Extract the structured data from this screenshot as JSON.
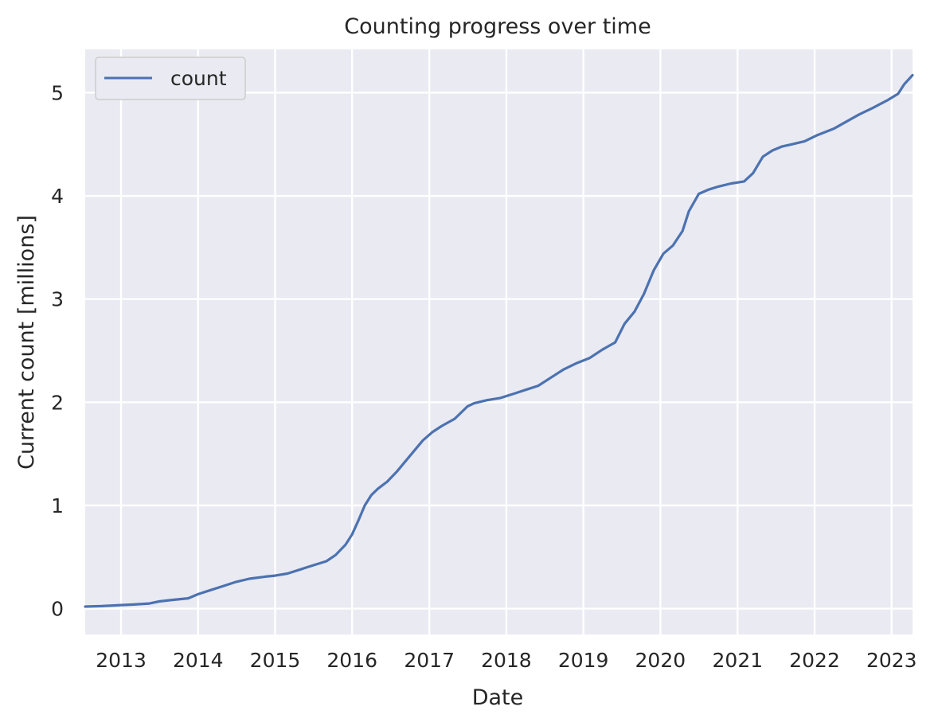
{
  "chart_data": {
    "type": "line",
    "title": "Counting progress over time",
    "xlabel": "Date",
    "ylabel": "Current count [millions]",
    "legend": {
      "placement": "top-left",
      "entries": [
        "count"
      ]
    },
    "grid": true,
    "xlim": [
      "2012-07-15",
      "2023-04-10"
    ],
    "ylim": [
      -0.25,
      5.42
    ],
    "x_ticks": [
      "2013",
      "2014",
      "2015",
      "2016",
      "2017",
      "2018",
      "2019",
      "2020",
      "2021",
      "2022",
      "2023"
    ],
    "y_ticks": [
      "0",
      "1",
      "2",
      "3",
      "4",
      "5"
    ],
    "colors": {
      "series": "#4c72b0",
      "plot_bg": "#eaeaf2",
      "grid": "#ffffff"
    },
    "series": [
      {
        "name": "count",
        "points": [
          [
            "2012-07-15",
            0.02
          ],
          [
            "2012-10-01",
            0.025
          ],
          [
            "2013-01-01",
            0.035
          ],
          [
            "2013-03-01",
            0.04
          ],
          [
            "2013-05-15",
            0.05
          ],
          [
            "2013-07-01",
            0.07
          ],
          [
            "2013-09-01",
            0.085
          ],
          [
            "2013-11-15",
            0.1
          ],
          [
            "2014-01-01",
            0.14
          ],
          [
            "2014-03-01",
            0.18
          ],
          [
            "2014-05-01",
            0.22
          ],
          [
            "2014-07-01",
            0.26
          ],
          [
            "2014-09-01",
            0.29
          ],
          [
            "2014-11-15",
            0.31
          ],
          [
            "2015-01-01",
            0.32
          ],
          [
            "2015-03-01",
            0.34
          ],
          [
            "2015-05-01",
            0.38
          ],
          [
            "2015-07-01",
            0.42
          ],
          [
            "2015-09-01",
            0.46
          ],
          [
            "2015-10-15",
            0.52
          ],
          [
            "2015-12-01",
            0.62
          ],
          [
            "2016-01-01",
            0.72
          ],
          [
            "2016-02-01",
            0.86
          ],
          [
            "2016-03-01",
            1.0
          ],
          [
            "2016-04-01",
            1.1
          ],
          [
            "2016-05-01",
            1.16
          ],
          [
            "2016-06-15",
            1.23
          ],
          [
            "2016-08-01",
            1.33
          ],
          [
            "2016-10-01",
            1.48
          ],
          [
            "2016-12-01",
            1.63
          ],
          [
            "2017-01-15",
            1.71
          ],
          [
            "2017-03-01",
            1.77
          ],
          [
            "2017-05-01",
            1.84
          ],
          [
            "2017-07-01",
            1.96
          ],
          [
            "2017-08-01",
            1.99
          ],
          [
            "2017-10-01",
            2.02
          ],
          [
            "2017-12-01",
            2.04
          ],
          [
            "2018-02-01",
            2.08
          ],
          [
            "2018-04-01",
            2.12
          ],
          [
            "2018-06-01",
            2.16
          ],
          [
            "2018-08-01",
            2.24
          ],
          [
            "2018-10-01",
            2.32
          ],
          [
            "2018-12-01",
            2.38
          ],
          [
            "2019-02-01",
            2.43
          ],
          [
            "2019-04-01",
            2.51
          ],
          [
            "2019-06-01",
            2.58
          ],
          [
            "2019-07-15",
            2.76
          ],
          [
            "2019-09-01",
            2.88
          ],
          [
            "2019-10-15",
            3.05
          ],
          [
            "2019-12-01",
            3.28
          ],
          [
            "2020-01-15",
            3.44
          ],
          [
            "2020-03-01",
            3.52
          ],
          [
            "2020-04-15",
            3.66
          ],
          [
            "2020-05-15",
            3.85
          ],
          [
            "2020-07-01",
            4.02
          ],
          [
            "2020-08-15",
            4.06
          ],
          [
            "2020-10-01",
            4.09
          ],
          [
            "2020-12-01",
            4.12
          ],
          [
            "2021-02-01",
            4.14
          ],
          [
            "2021-03-15",
            4.22
          ],
          [
            "2021-05-01",
            4.38
          ],
          [
            "2021-06-15",
            4.44
          ],
          [
            "2021-08-01",
            4.48
          ],
          [
            "2021-09-15",
            4.5
          ],
          [
            "2021-11-15",
            4.53
          ],
          [
            "2022-01-15",
            4.59
          ],
          [
            "2022-04-01",
            4.65
          ],
          [
            "2022-06-01",
            4.72
          ],
          [
            "2022-08-01",
            4.79
          ],
          [
            "2022-10-01",
            4.85
          ],
          [
            "2022-12-15",
            4.93
          ],
          [
            "2023-02-01",
            4.99
          ],
          [
            "2023-03-01",
            5.08
          ],
          [
            "2023-04-10",
            5.17
          ]
        ]
      }
    ]
  }
}
